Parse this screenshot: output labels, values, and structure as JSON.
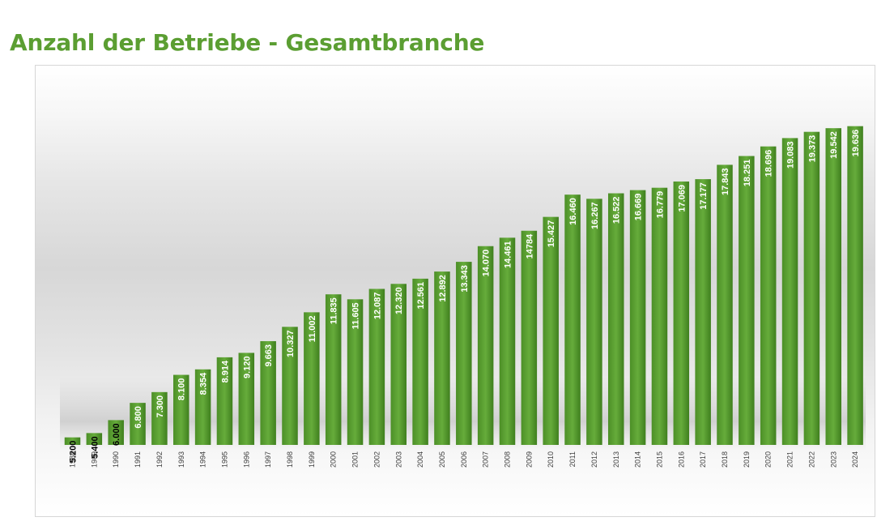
{
  "title": "Anzahl der Betriebe - Gesamtbranche",
  "colors": {
    "title": "#5b9e32",
    "bar_light": "#66ac3b",
    "bar_dark": "#3f7f1e",
    "label_inside": "#ffffff",
    "label_small": "#000000",
    "tick": "#404040"
  },
  "chart_data": {
    "type": "bar",
    "title": "Anzahl der Betriebe - Gesamtbranche",
    "xlabel": "",
    "ylabel": "",
    "categories": [
      "1988",
      "1989",
      "1990",
      "1991",
      "1992",
      "1993",
      "1994",
      "1995",
      "1996",
      "1997",
      "1998",
      "1999",
      "2000",
      "2001",
      "2002",
      "2003",
      "2004",
      "2005",
      "2006",
      "2007",
      "2008",
      "2009",
      "2010",
      "2011",
      "2012",
      "2013",
      "2014",
      "2015",
      "2016",
      "2017",
      "2018",
      "2019",
      "2020",
      "2021",
      "2022",
      "2023",
      "2024"
    ],
    "values": [
      5200,
      5400,
      6000,
      6800,
      7300,
      8100,
      8354,
      8914,
      9120,
      9663,
      10327,
      11002,
      11835,
      11605,
      12087,
      12320,
      12561,
      12892,
      13343,
      14070,
      14461,
      14784,
      15427,
      16460,
      16267,
      16522,
      16669,
      16779,
      17069,
      17177,
      17843,
      18251,
      18696,
      19083,
      19373,
      19542,
      19636
    ],
    "labels": [
      "5.200",
      "5.400",
      "6.000",
      "6.800",
      "7.300",
      "8.100",
      "8.354",
      "8.914",
      "9.120",
      "9.663",
      "10.327",
      "11.002",
      "11.835",
      "11.605",
      "12.087",
      "12.320",
      "12.561",
      "12.892",
      "13.343",
      "14.070",
      "14.461",
      "14784",
      "15.427",
      "16.460",
      "16.267",
      "16.522",
      "16.669",
      "16.779",
      "17.069",
      "17.177",
      "17.843",
      "18.251",
      "18.696",
      "19.083",
      "19.373",
      "19.542",
      "19.636"
    ],
    "ylim": [
      4850,
      20000
    ],
    "grid": false,
    "legend": "none"
  }
}
